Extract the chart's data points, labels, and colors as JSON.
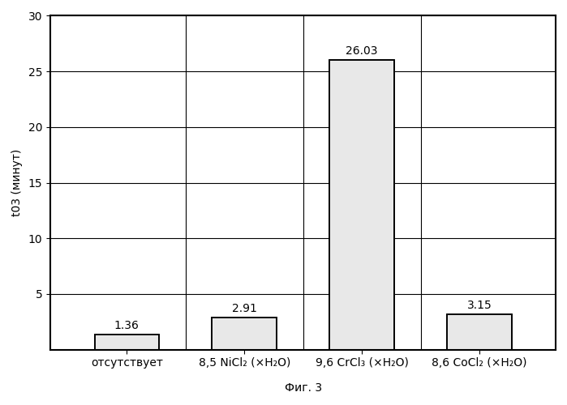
{
  "categories": [
    "отсутствует",
    "8,5 NiCl₂ (×H₂O)",
    "9,6 CrCl₃ (×H₂O)",
    "8,6 CoCl₂ (×H₂O)"
  ],
  "values": [
    1.36,
    2.91,
    26.03,
    3.15
  ],
  "ylabel": "t03 (минут)",
  "xlabel": "Фиг. 3",
  "ylim": [
    0,
    30
  ],
  "yticks": [
    5,
    10,
    15,
    20,
    25,
    30
  ],
  "bar_color": "#e8e8e8",
  "bar_edge_color": "#000000",
  "bar_width": 0.55,
  "value_labels": [
    "1.36",
    "2.91",
    "26.03",
    "3.15"
  ],
  "background_color": "#ffffff",
  "grid_color": "#000000",
  "label_fontsize": 10,
  "tick_fontsize": 10,
  "noise_density": 0.08
}
